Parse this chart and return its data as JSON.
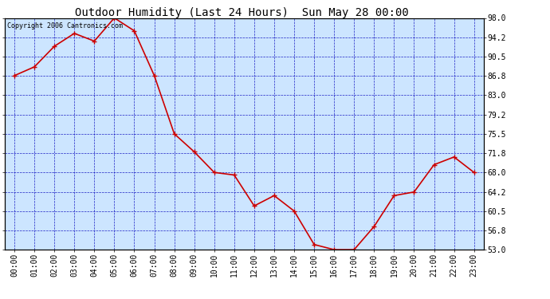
{
  "title": "Outdoor Humidity (Last 24 Hours)  Sun May 28 00:00",
  "copyright_text": "Copyright 2006 Cantronics.com",
  "x_labels": [
    "00:00",
    "01:00",
    "02:00",
    "03:00",
    "04:00",
    "05:00",
    "06:00",
    "07:00",
    "08:00",
    "09:00",
    "10:00",
    "11:00",
    "12:00",
    "13:00",
    "14:00",
    "15:00",
    "16:00",
    "17:00",
    "18:00",
    "19:00",
    "20:00",
    "21:00",
    "22:00",
    "23:00"
  ],
  "y_values": [
    86.8,
    88.5,
    92.5,
    95.0,
    93.5,
    98.0,
    95.5,
    86.8,
    75.5,
    72.0,
    68.0,
    67.5,
    61.5,
    63.5,
    60.5,
    54.0,
    53.0,
    53.0,
    57.5,
    63.5,
    64.2,
    69.5,
    71.0,
    68.0
  ],
  "ylim_min": 53.0,
  "ylim_max": 98.0,
  "yticks": [
    53.0,
    56.8,
    60.5,
    64.2,
    68.0,
    71.8,
    75.5,
    79.2,
    83.0,
    86.8,
    90.5,
    94.2,
    98.0
  ],
  "line_color": "#cc0000",
  "marker_color": "#cc0000",
  "bg_color": "#cce5ff",
  "outer_bg_color": "#ffffff",
  "grid_color_major": "#0000bb",
  "grid_color_minor": "#0000bb",
  "title_color": "#000000",
  "title_fontsize": 10,
  "copyright_fontsize": 6,
  "tick_fontsize": 7,
  "marker": "+",
  "marker_size": 4,
  "line_width": 1.2
}
